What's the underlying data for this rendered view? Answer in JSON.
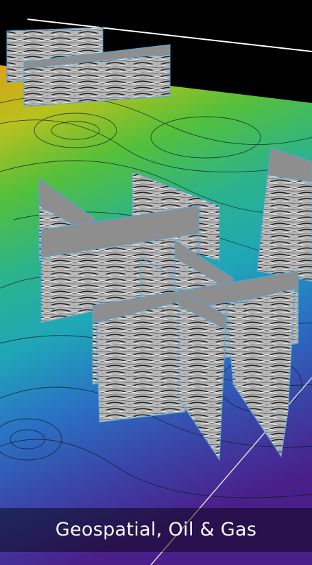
{
  "caption": "Geospatial, Oil & Gas"
}
